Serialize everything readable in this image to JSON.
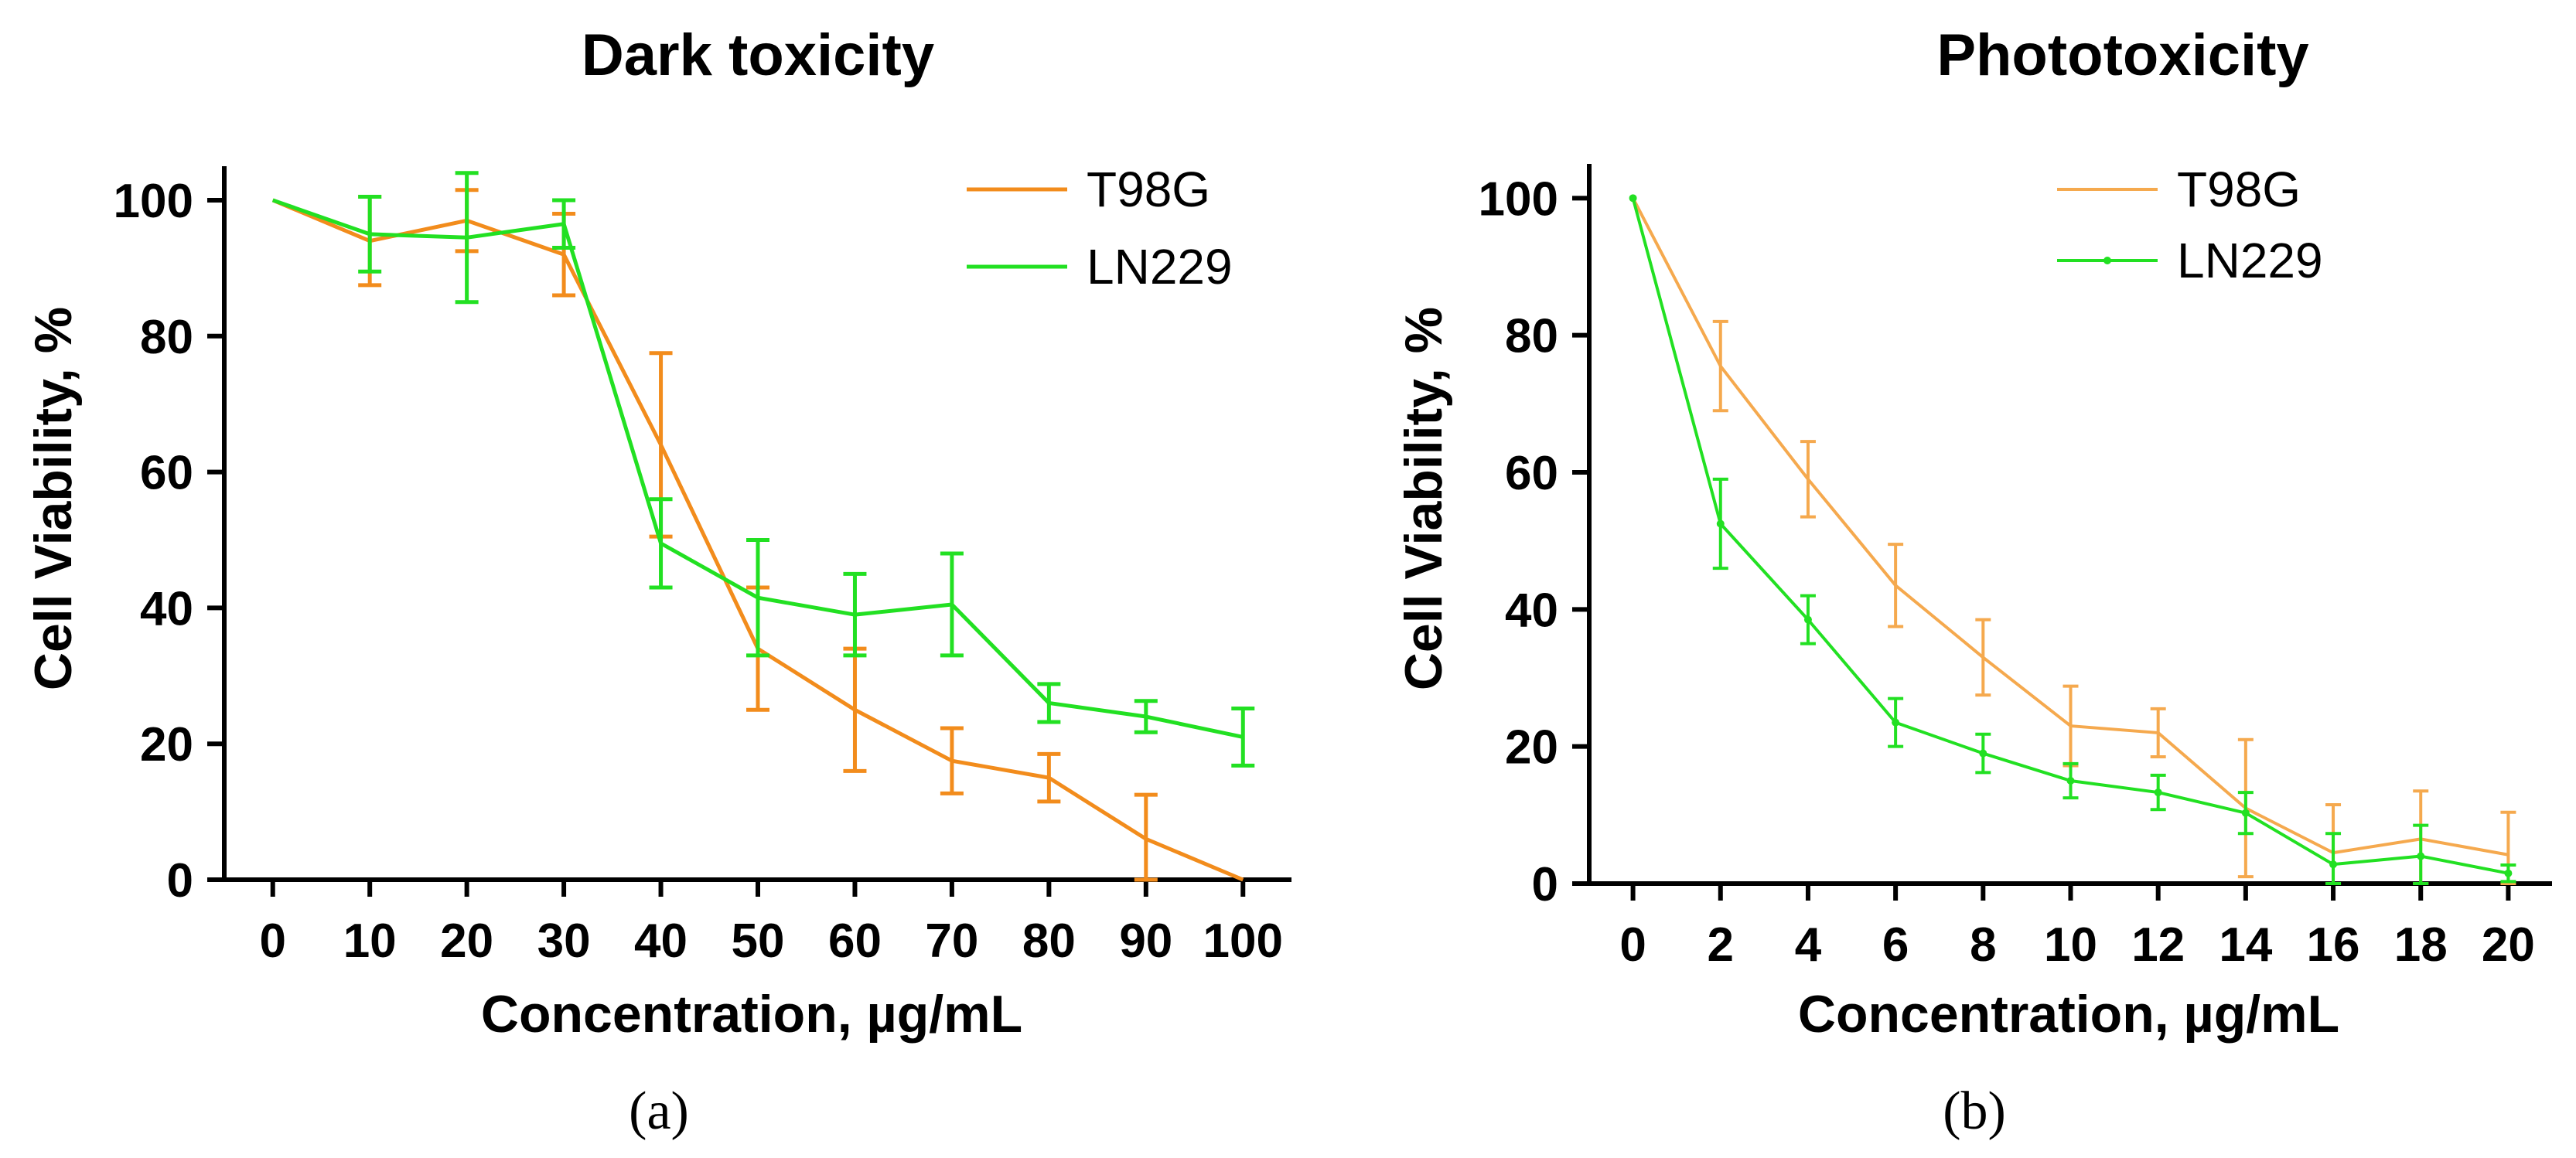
{
  "captions": [
    "(a)",
    "(b)"
  ],
  "chart_data": [
    {
      "type": "line",
      "title": "Dark toxicity",
      "xlabel": "Concentration, µg/mL",
      "ylabel": "Cell Viability, %",
      "xlim": [
        -5,
        105
      ],
      "ylim": [
        0,
        105
      ],
      "xticks": [
        0,
        10,
        20,
        30,
        40,
        50,
        60,
        70,
        80,
        90,
        100
      ],
      "xtick_labels": [
        "0",
        "10",
        "20",
        "30",
        "40",
        "50",
        "60",
        "70",
        "80",
        "90",
        "100"
      ],
      "yticks": [
        0,
        20,
        40,
        60,
        80,
        100
      ],
      "ytick_labels": [
        "0",
        "20",
        "40",
        "60",
        "80",
        "100"
      ],
      "legend_position": "top-right",
      "x": [
        0,
        10,
        20,
        30,
        40,
        50,
        60,
        70,
        80,
        90,
        100
      ],
      "series": [
        {
          "name": "T98G",
          "color": "#f28c1c",
          "marker": false,
          "values": [
            100,
            94,
            97,
            92,
            64,
            34,
            25,
            17.5,
            15,
            6,
            0
          ],
          "errors": [
            0,
            6.5,
            4.5,
            6,
            13.5,
            9,
            9,
            4.8,
            3.5,
            6.5,
            0
          ]
        },
        {
          "name": "LN229",
          "color": "#22e022",
          "marker": false,
          "values": [
            100,
            95,
            94.5,
            96.5,
            49.5,
            41.5,
            39,
            40.5,
            26,
            24,
            21
          ],
          "errors": [
            0,
            5.5,
            9.5,
            3.5,
            6.5,
            8.5,
            6,
            7.5,
            2.8,
            2.3,
            4.2
          ]
        }
      ]
    },
    {
      "type": "line",
      "title": "Phototoxicity",
      "xlabel": "Concentration, µg/mL",
      "ylabel": "Cell Viability, %",
      "xlim": [
        -1,
        21
      ],
      "ylim": [
        0,
        105
      ],
      "xticks": [
        0,
        2,
        4,
        6,
        8,
        10,
        12,
        14,
        16,
        18,
        20
      ],
      "xtick_labels": [
        "0",
        "2",
        "4",
        "6",
        "8",
        "10",
        "12",
        "14",
        "16",
        "18",
        "20"
      ],
      "yticks": [
        0,
        20,
        40,
        60,
        80,
        100
      ],
      "ytick_labels": [
        "0",
        "20",
        "40",
        "60",
        "80",
        "100"
      ],
      "legend_position": "top-right",
      "x": [
        0,
        2,
        4,
        6,
        8,
        10,
        12,
        14,
        16,
        18,
        20
      ],
      "series": [
        {
          "name": "T98G",
          "color": "#f5a94e",
          "marker": false,
          "values": [
            100,
            75.5,
            59,
            43.5,
            33,
            23,
            22,
            11,
            4.5,
            6.5,
            4.2
          ],
          "errors": [
            0,
            6.5,
            5.5,
            6,
            5.5,
            5.8,
            3.5,
            10,
            7,
            7,
            6.2
          ]
        },
        {
          "name": "LN229",
          "color": "#22e022",
          "marker": true,
          "values": [
            100,
            52.5,
            38.5,
            23.5,
            19,
            15,
            13.3,
            10.3,
            2.8,
            4,
            1.5
          ],
          "errors": [
            0,
            6.5,
            3.5,
            3.5,
            2.8,
            2.5,
            2.5,
            3,
            4.5,
            4.5,
            1.2
          ]
        }
      ]
    }
  ]
}
